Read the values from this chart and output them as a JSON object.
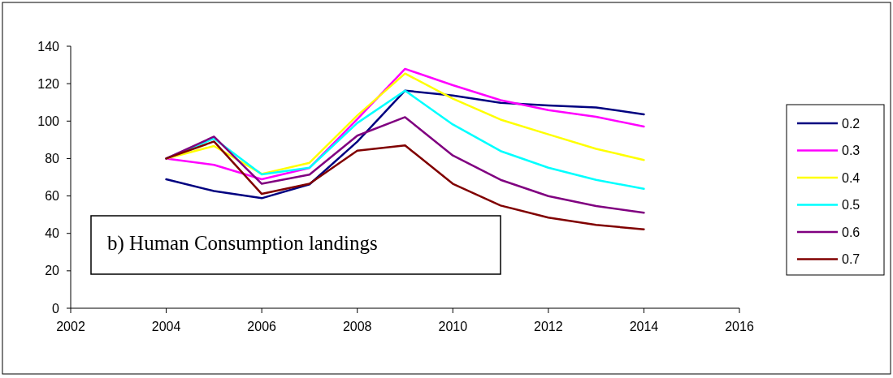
{
  "chart_data": {
    "type": "line",
    "x": [
      2004,
      2005,
      2006,
      2007,
      2008,
      2009,
      2010,
      2011,
      2012,
      2013,
      2014
    ],
    "xlim": [
      2002,
      2016
    ],
    "xticks": [
      2002,
      2004,
      2006,
      2008,
      2010,
      2012,
      2014,
      2016
    ],
    "ylim": [
      0,
      140
    ],
    "yticks": [
      0,
      20,
      40,
      60,
      80,
      100,
      120,
      140
    ],
    "grid": false,
    "legend": "right",
    "marker": "none",
    "line_style": "solid",
    "annotations": [
      "b) Human Consumption landings"
    ],
    "series": [
      {
        "name": "0.2",
        "color": "#000080",
        "values": [
          68.9,
          62.6,
          58.8,
          66.2,
          89,
          116.3,
          113.7,
          109.8,
          108.4,
          107.3,
          103.6
        ]
      },
      {
        "name": "0.3",
        "color": "#ff00ff",
        "values": [
          80,
          76.6,
          68.9,
          75,
          101,
          127.9,
          119.2,
          111.2,
          105.9,
          102.3,
          97.1
        ]
      },
      {
        "name": "0.4",
        "color": "#ffff00",
        "values": [
          80,
          86.7,
          71.8,
          77.7,
          103,
          125.4,
          112,
          100.8,
          92.9,
          85.2,
          79.2
        ]
      },
      {
        "name": "0.5",
        "color": "#00ffff",
        "values": [
          80,
          90.7,
          71.5,
          75.1,
          99,
          116.3,
          98.2,
          84,
          75.1,
          68.6,
          63.8
        ]
      },
      {
        "name": "0.6",
        "color": "#800080",
        "values": [
          80,
          91.7,
          66.5,
          71.4,
          92.2,
          102.1,
          81.6,
          68.6,
          59.9,
          54.6,
          51
        ]
      },
      {
        "name": "0.7",
        "color": "#800000",
        "values": [
          80,
          89.1,
          61.1,
          66.5,
          84.2,
          87,
          66.5,
          54.9,
          48.4,
          44.5,
          42.2
        ]
      }
    ]
  }
}
